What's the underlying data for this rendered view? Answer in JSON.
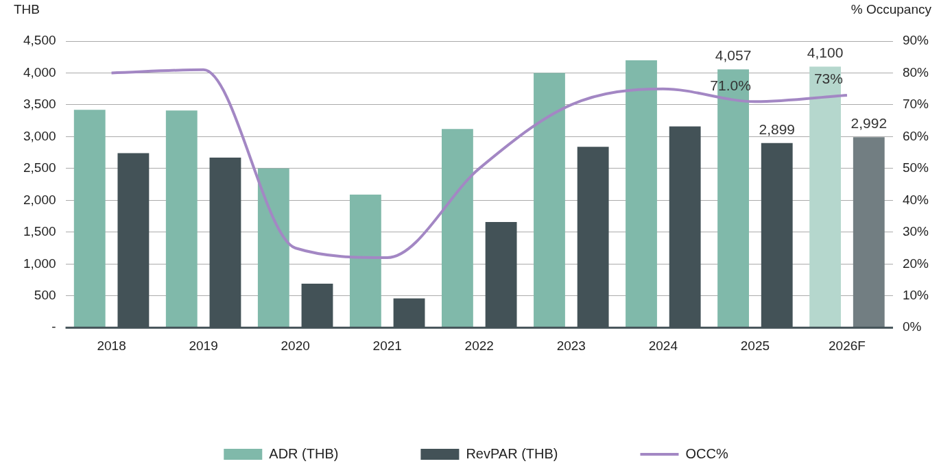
{
  "chart_data": {
    "type": "bar",
    "categories": [
      "2018",
      "2019",
      "2020",
      "2021",
      "2022",
      "2023",
      "2024",
      "2025",
      "2026F"
    ],
    "ylabel": "THB",
    "y2label": "% Occupancy",
    "ylim": [
      0,
      4500
    ],
    "yticks": [
      {
        "value": 0,
        "label": "-"
      },
      {
        "value": 500,
        "label": "500"
      },
      {
        "value": 1000,
        "label": "1,000"
      },
      {
        "value": 1500,
        "label": "1,500"
      },
      {
        "value": 2000,
        "label": "2,000"
      },
      {
        "value": 2500,
        "label": "2,500"
      },
      {
        "value": 3000,
        "label": "3,000"
      },
      {
        "value": 3500,
        "label": "3,500"
      },
      {
        "value": 4000,
        "label": "4,000"
      },
      {
        "value": 4500,
        "label": "4,500"
      }
    ],
    "y2lim": [
      0,
      90
    ],
    "y2ticks": [
      {
        "value": 0,
        "label": "0%"
      },
      {
        "value": 10,
        "label": "10%"
      },
      {
        "value": 20,
        "label": "20%"
      },
      {
        "value": 30,
        "label": "30%"
      },
      {
        "value": 40,
        "label": "40%"
      },
      {
        "value": 50,
        "label": "50%"
      },
      {
        "value": 60,
        "label": "60%"
      },
      {
        "value": 70,
        "label": "70%"
      },
      {
        "value": 80,
        "label": "80%"
      },
      {
        "value": 90,
        "label": "90%"
      }
    ],
    "series": [
      {
        "name": "ADR (THB)",
        "color": "#80b9aa",
        "colors": [
          "#80b9aa",
          "#80b9aa",
          "#80b9aa",
          "#80b9aa",
          "#80b9aa",
          "#80b9aa",
          "#80b9aa",
          "#80b9aa",
          "#b5d7cd"
        ],
        "values": [
          3420,
          3410,
          2500,
          2090,
          3120,
          4000,
          4200,
          4057,
          4100
        ],
        "value_labels": [
          null,
          null,
          null,
          null,
          null,
          null,
          null,
          "4,057",
          "4,100"
        ]
      },
      {
        "name": "RevPAR (THB)",
        "color": "#435257",
        "colors": [
          "#435257",
          "#435257",
          "#435257",
          "#435257",
          "#435257",
          "#435257",
          "#435257",
          "#435257",
          "#727e82"
        ],
        "values": [
          2740,
          2670,
          690,
          460,
          1660,
          2840,
          3160,
          2899,
          2992
        ],
        "value_labels": [
          null,
          null,
          null,
          null,
          null,
          null,
          null,
          "2,899",
          "2,992"
        ]
      },
      {
        "name": "OCC%",
        "type": "line",
        "axis": "y2",
        "color": "#a387c4",
        "values": [
          80,
          81,
          25,
          22,
          50,
          70,
          75,
          71.0,
          73
        ],
        "value_labels": [
          null,
          null,
          null,
          null,
          null,
          null,
          null,
          "71.0%",
          "73%"
        ]
      }
    ],
    "grid": "y",
    "legend": "bottom",
    "marker": "none",
    "line_style": "solid"
  }
}
